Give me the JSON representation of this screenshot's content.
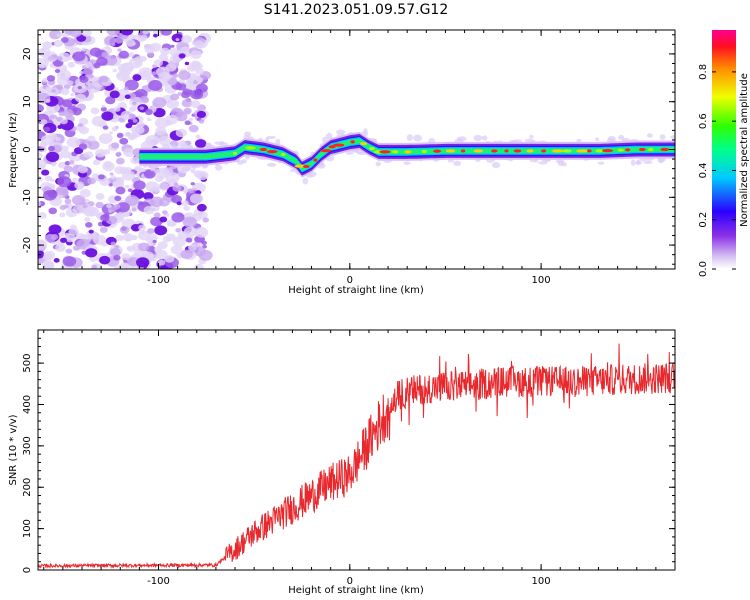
{
  "title": "S141.2023.051.09.57.G12",
  "chart_data": [
    {
      "type": "heatmap",
      "xlabel": "Height of straight line (km)",
      "ylabel": "Frequency (Hz)",
      "xlim": [
        -163,
        170
      ],
      "ylim": [
        -25,
        25
      ],
      "x_ticks": [
        -100,
        0,
        100
      ],
      "y_ticks": [
        -20,
        -10,
        0,
        10,
        20
      ],
      "colorbar": {
        "label": "Normalized spectral amplitude",
        "range": [
          0,
          0.97
        ],
        "ticks": [
          0.0,
          0.2,
          0.4,
          0.6,
          0.8
        ]
      },
      "ridge": {
        "x": [
          -110,
          -90,
          -75,
          -60,
          -55,
          -45,
          -35,
          -28,
          -25,
          -20,
          -15,
          -10,
          -5,
          0,
          5,
          10,
          15,
          30,
          50,
          70,
          90,
          110,
          130,
          150,
          170
        ],
        "y": [
          -1.5,
          -1.5,
          -1.5,
          -0.8,
          0.5,
          0,
          -1,
          -2.5,
          -4,
          -3,
          -1,
          0.5,
          1,
          1.5,
          1.8,
          0.5,
          -0.5,
          -0.5,
          -0.3,
          -0.3,
          -0.3,
          -0.3,
          -0.3,
          0,
          0
        ]
      },
      "noise_region_x": [
        -163,
        -75
      ]
    },
    {
      "type": "line",
      "xlabel": "Height of straight line (km)",
      "ylabel": "SNR (10 * v/v)",
      "xlim": [
        -163,
        170
      ],
      "ylim": [
        0,
        580
      ],
      "x_ticks": [
        -100,
        0,
        100
      ],
      "y_ticks": [
        0,
        100,
        200,
        300,
        400,
        500
      ],
      "series": [
        {
          "color": "#e8282d",
          "trend_x": [
            -163,
            -70,
            -60,
            -50,
            -40,
            -30,
            -20,
            -10,
            0,
            10,
            15,
            20,
            25,
            30,
            40,
            60,
            80,
            100,
            120,
            140,
            170
          ],
          "trend_y": [
            10,
            12,
            50,
            90,
            120,
            150,
            180,
            210,
            230,
            310,
            350,
            390,
            420,
            430,
            440,
            445,
            455,
            455,
            455,
            460,
            465
          ]
        }
      ]
    }
  ]
}
